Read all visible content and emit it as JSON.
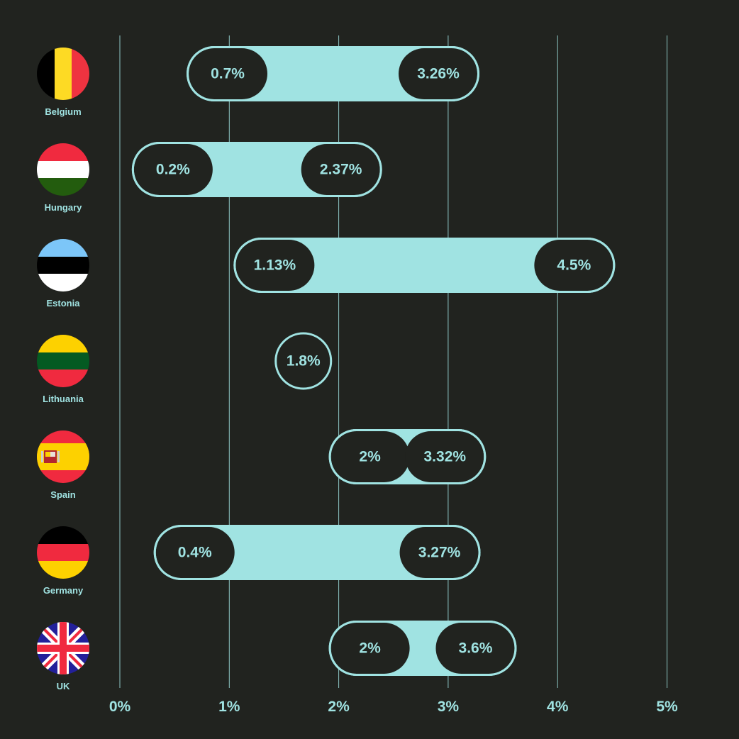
{
  "chart_data": {
    "type": "range-bar",
    "title": "",
    "xlabel": "",
    "ylabel": "",
    "xlim": [
      0,
      5
    ],
    "x_ticks": [
      "0%",
      "1%",
      "2%",
      "3%",
      "4%",
      "5%"
    ],
    "grid": "vertical",
    "colors": {
      "background": "#21231f",
      "accent": "#a0e3e2",
      "grid": "#a0e3e2"
    },
    "rows": [
      {
        "country": "Belgium",
        "flag": "belgium-flag",
        "low": 0.7,
        "high": 3.26,
        "low_label": "0.7%",
        "high_label": "3.26%"
      },
      {
        "country": "Hungary",
        "flag": "hungary-flag",
        "low": 0.2,
        "high": 2.37,
        "low_label": "0.2%",
        "high_label": "2.37%"
      },
      {
        "country": "Estonia",
        "flag": "estonia-flag",
        "low": 1.13,
        "high": 4.5,
        "low_label": "1.13%",
        "high_label": "4.5%"
      },
      {
        "country": "Lithuania",
        "flag": "lithuania-flag",
        "low": 1.8,
        "high": 1.8,
        "low_label": "1.8%",
        "high_label": ""
      },
      {
        "country": "Spain",
        "flag": "spain-flag",
        "low": 2,
        "high": 3.32,
        "low_label": "2%",
        "high_label": "3.32%"
      },
      {
        "country": "Germany",
        "flag": "germany-flag",
        "low": 0.4,
        "high": 3.27,
        "low_label": "0.4%",
        "high_label": "3.27%"
      },
      {
        "country": "UK",
        "flag": "uk-flag",
        "low": 2,
        "high": 3.6,
        "low_label": "2%",
        "high_label": "3.6%"
      }
    ]
  }
}
